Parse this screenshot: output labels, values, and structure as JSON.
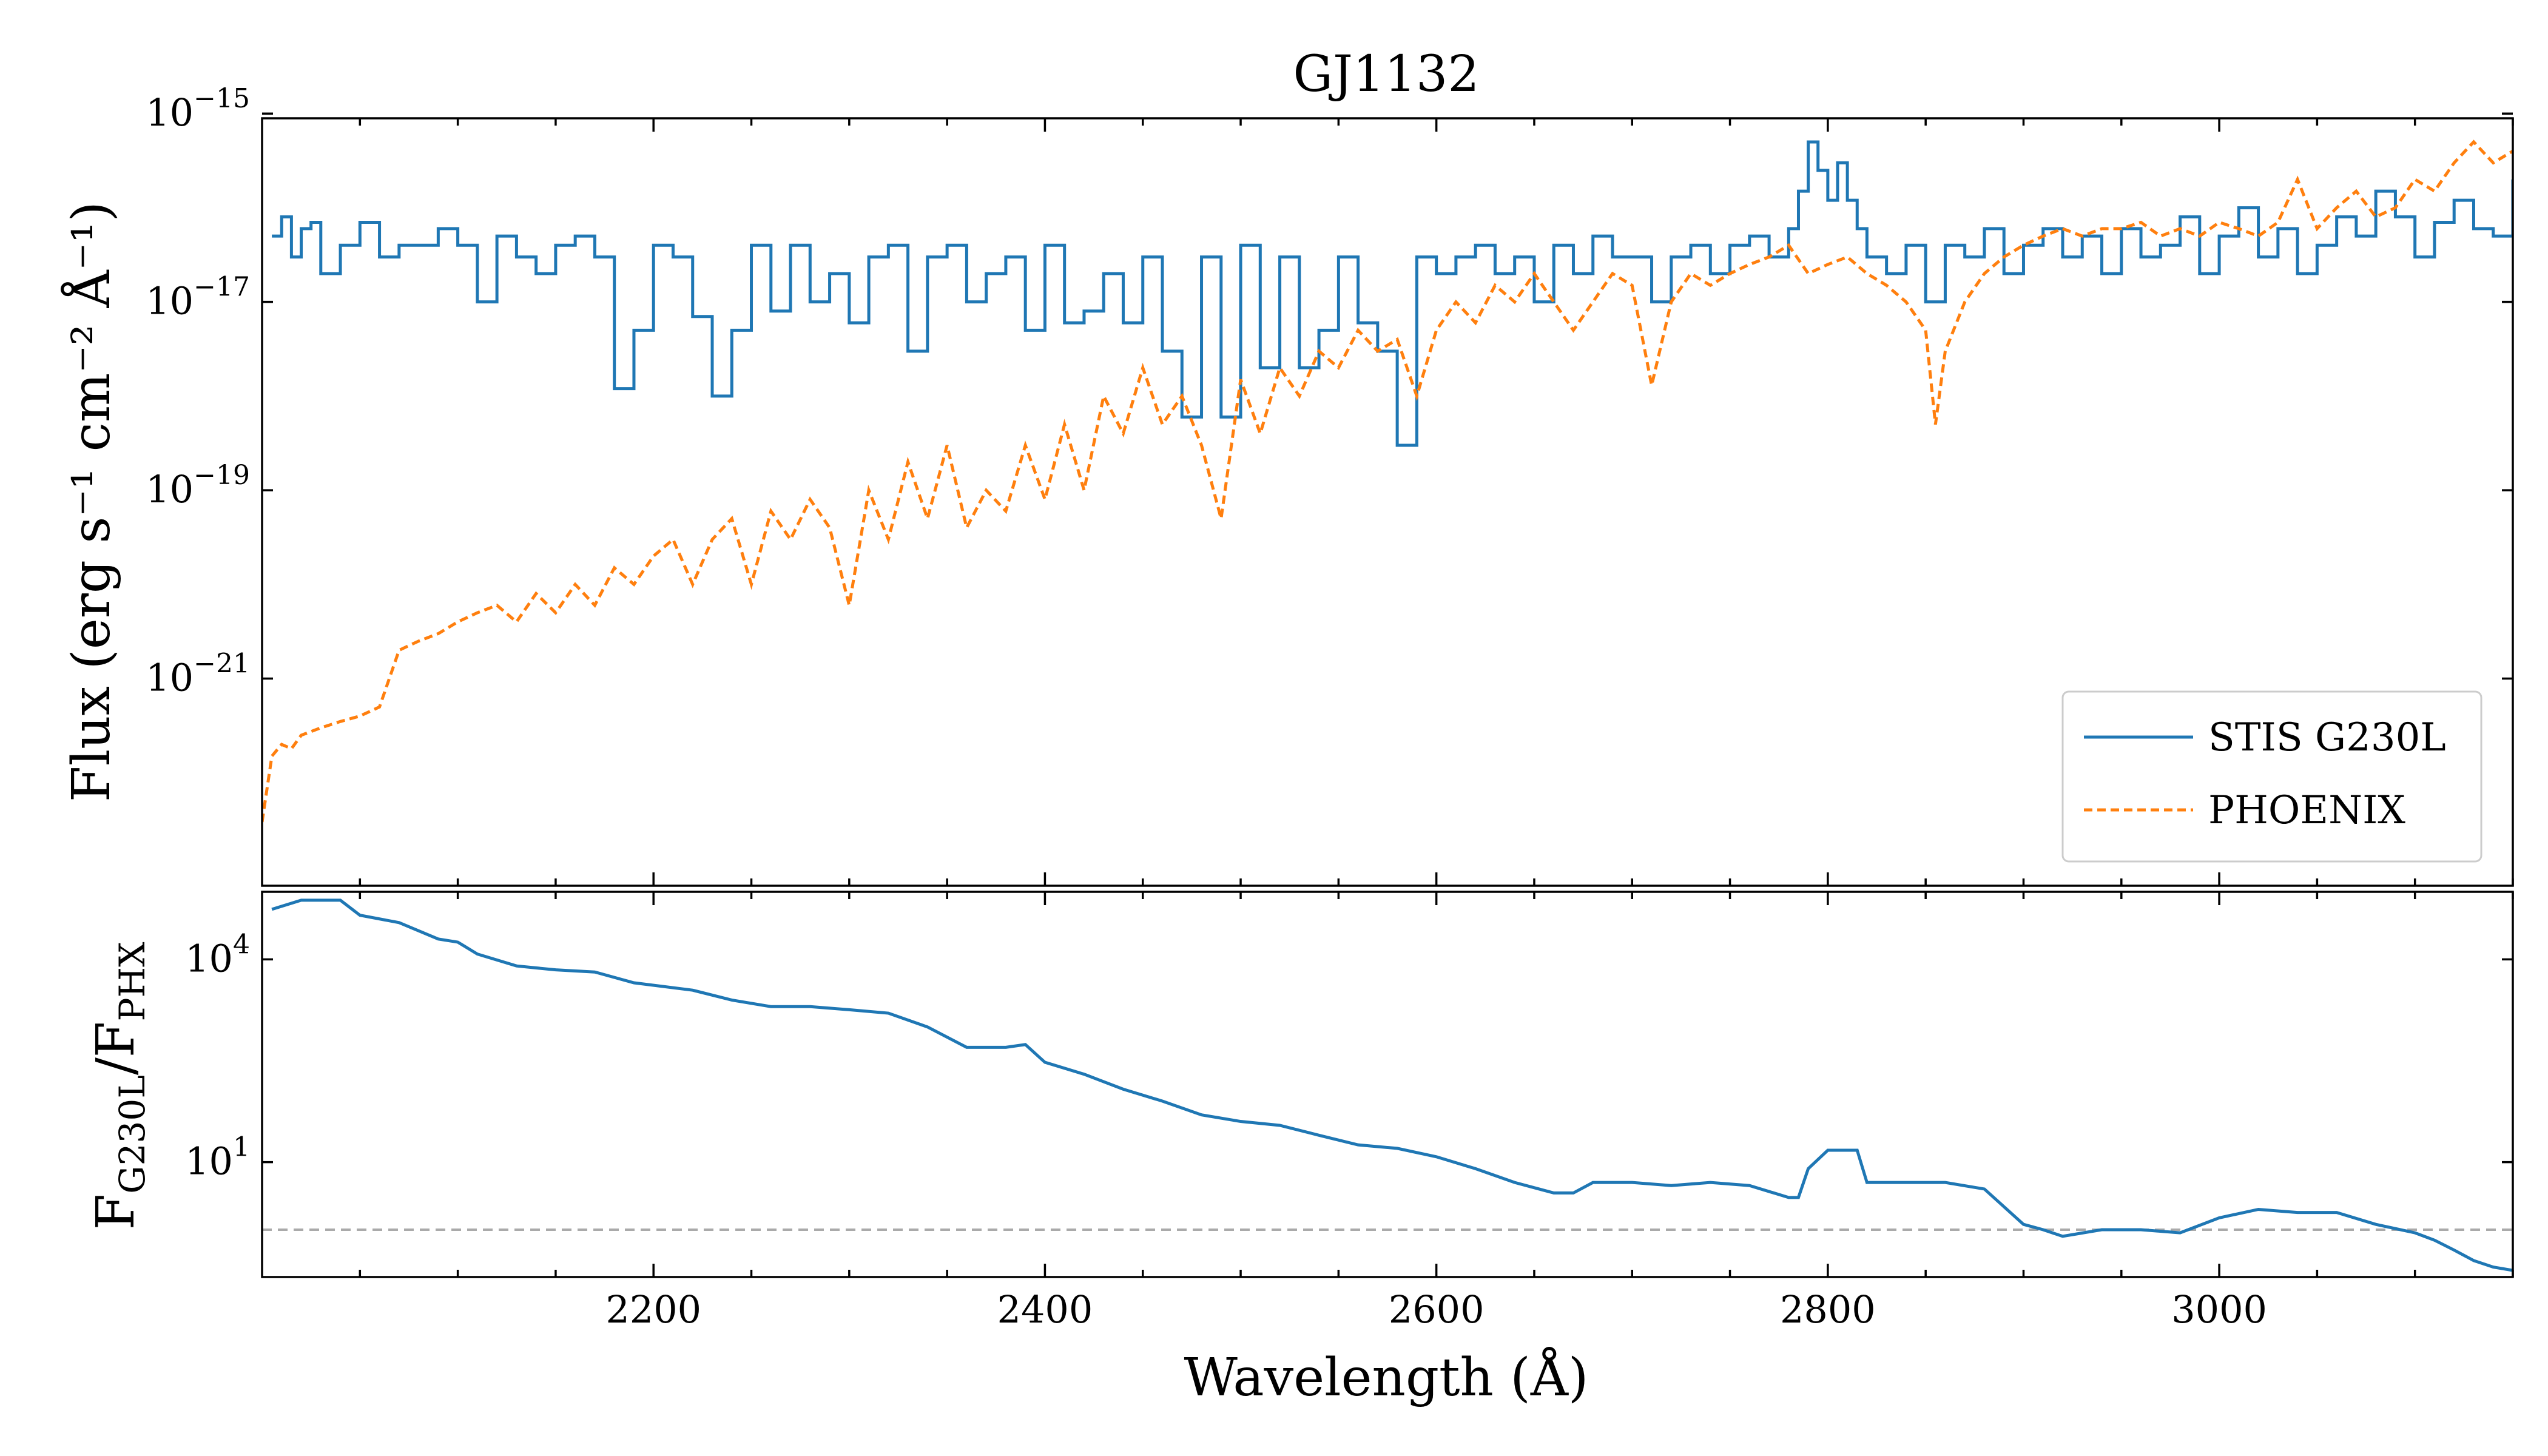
{
  "chart_data": [
    {
      "type": "line",
      "panel": "top",
      "title": "GJ1132",
      "xlabel": "",
      "ylabel": "Flux (erg s⁻¹ cm⁻² Å⁻¹)",
      "xlim": [
        2000,
        3150
      ],
      "ylim_log10": [
        -23.2,
        -15.05
      ],
      "yscale": "log",
      "y_ticks": [
        {
          "exp": -15,
          "label": "10",
          "sup": "−15"
        },
        {
          "exp": -17,
          "label": "10",
          "sup": "−17"
        },
        {
          "exp": -19,
          "label": "10",
          "sup": "−19"
        },
        {
          "exp": -21,
          "label": "10",
          "sup": "−21"
        }
      ],
      "legend": {
        "placement": "lower-right",
        "entries": [
          "STIS G230L",
          "PHOENIX"
        ]
      },
      "series": [
        {
          "name": "STIS G230L",
          "style": "step",
          "color": "#1f77b4",
          "x": [
            2005,
            2010,
            2015,
            2020,
            2025,
            2030,
            2040,
            2050,
            2060,
            2070,
            2080,
            2090,
            2100,
            2110,
            2120,
            2130,
            2140,
            2150,
            2160,
            2170,
            2180,
            2190,
            2200,
            2210,
            2220,
            2230,
            2240,
            2250,
            2260,
            2270,
            2280,
            2290,
            2300,
            2310,
            2320,
            2330,
            2340,
            2350,
            2360,
            2370,
            2380,
            2390,
            2400,
            2410,
            2420,
            2430,
            2440,
            2450,
            2460,
            2470,
            2480,
            2490,
            2500,
            2510,
            2520,
            2530,
            2540,
            2550,
            2560,
            2570,
            2580,
            2590,
            2600,
            2610,
            2620,
            2630,
            2640,
            2650,
            2660,
            2670,
            2680,
            2690,
            2700,
            2710,
            2720,
            2730,
            2740,
            2750,
            2760,
            2770,
            2780,
            2785,
            2790,
            2795,
            2800,
            2805,
            2810,
            2815,
            2820,
            2830,
            2840,
            2850,
            2860,
            2870,
            2880,
            2890,
            2900,
            2910,
            2920,
            2930,
            2940,
            2950,
            2960,
            2970,
            2980,
            2990,
            3000,
            3010,
            3020,
            3030,
            3040,
            3050,
            3060,
            3070,
            3080,
            3090,
            3100,
            3110,
            3120,
            3130,
            3140,
            3150
          ],
          "y": [
            5e-17,
            8e-17,
            3e-17,
            6e-17,
            7e-17,
            2e-17,
            4e-17,
            7e-17,
            3e-17,
            4e-17,
            4e-17,
            6e-17,
            4e-17,
            1e-17,
            5e-17,
            3e-17,
            2e-17,
            4e-17,
            5e-17,
            3e-17,
            1.2e-18,
            5e-18,
            4e-17,
            3e-17,
            7e-18,
            1e-18,
            5e-18,
            4e-17,
            8e-18,
            4e-17,
            1e-17,
            2e-17,
            6e-18,
            3e-17,
            4e-17,
            3e-18,
            3e-17,
            4e-17,
            1e-17,
            2e-17,
            3e-17,
            5e-18,
            4e-17,
            6e-18,
            8e-18,
            2e-17,
            6e-18,
            3e-17,
            3e-18,
            6e-19,
            3e-17,
            6e-19,
            4e-17,
            2e-18,
            3e-17,
            2e-18,
            5e-18,
            3e-17,
            6e-18,
            3e-18,
            3e-19,
            3e-17,
            2e-17,
            3e-17,
            4e-17,
            2e-17,
            3e-17,
            1e-17,
            4e-17,
            2e-17,
            5e-17,
            3e-17,
            3e-17,
            1e-17,
            3e-17,
            4e-17,
            2e-17,
            4e-17,
            5e-17,
            3e-17,
            6e-17,
            1.5e-16,
            5e-16,
            2.5e-16,
            1.2e-16,
            3e-16,
            1.2e-16,
            6e-17,
            3e-17,
            2e-17,
            4e-17,
            1e-17,
            4e-17,
            3e-17,
            6e-17,
            2e-17,
            4e-17,
            6e-17,
            3e-17,
            5e-17,
            2e-17,
            6e-17,
            3e-17,
            4e-17,
            8e-17,
            2e-17,
            5e-17,
            1e-16,
            3e-17,
            6e-17,
            2e-17,
            4e-17,
            8e-17,
            5e-17,
            1.5e-16,
            8e-17,
            3e-17,
            7e-17,
            1.2e-16,
            6e-17,
            5e-17,
            2e-16
          ]
        },
        {
          "name": "PHOENIX",
          "style": "dashed",
          "color": "#ff7f0e",
          "x": [
            2000,
            2005,
            2010,
            2015,
            2020,
            2030,
            2040,
            2050,
            2060,
            2065,
            2070,
            2080,
            2090,
            2100,
            2110,
            2120,
            2130,
            2140,
            2150,
            2160,
            2170,
            2180,
            2190,
            2200,
            2210,
            2220,
            2230,
            2240,
            2250,
            2260,
            2270,
            2280,
            2290,
            2300,
            2310,
            2320,
            2330,
            2340,
            2350,
            2360,
            2370,
            2380,
            2390,
            2400,
            2410,
            2420,
            2430,
            2440,
            2450,
            2460,
            2470,
            2480,
            2490,
            2500,
            2510,
            2520,
            2530,
            2540,
            2550,
            2560,
            2570,
            2580,
            2590,
            2600,
            2610,
            2620,
            2630,
            2640,
            2650,
            2660,
            2670,
            2680,
            2690,
            2700,
            2710,
            2720,
            2730,
            2740,
            2750,
            2760,
            2770,
            2780,
            2790,
            2800,
            2810,
            2820,
            2830,
            2840,
            2850,
            2855,
            2860,
            2870,
            2880,
            2890,
            2900,
            2910,
            2920,
            2930,
            2940,
            2950,
            2960,
            2970,
            2980,
            2990,
            3000,
            3010,
            3020,
            3030,
            3040,
            3050,
            3060,
            3070,
            3080,
            3090,
            3100,
            3110,
            3120,
            3130,
            3140,
            3150
          ],
          "y": [
            3e-23,
            1.5e-22,
            2e-22,
            1.8e-22,
            2.5e-22,
            3e-22,
            3.5e-22,
            4e-22,
            5e-22,
            1e-21,
            2e-21,
            2.5e-21,
            3e-21,
            4e-21,
            5e-21,
            6e-21,
            4e-21,
            8e-21,
            5e-21,
            1e-20,
            6e-21,
            1.5e-20,
            1e-20,
            2e-20,
            3e-20,
            1e-20,
            3e-20,
            5e-20,
            1e-20,
            6e-20,
            3e-20,
            8e-20,
            4e-20,
            6e-21,
            1e-19,
            3e-20,
            2e-19,
            5e-20,
            3e-19,
            4e-20,
            1e-19,
            6e-20,
            3e-19,
            8e-20,
            5e-19,
            1e-19,
            1e-18,
            4e-19,
            2e-18,
            5e-19,
            1e-18,
            3e-19,
            5e-20,
            1.5e-18,
            4e-19,
            2e-18,
            1e-18,
            3e-18,
            2e-18,
            5e-18,
            3e-18,
            4e-18,
            1e-18,
            5e-18,
            1e-17,
            6e-18,
            1.5e-17,
            1e-17,
            2e-17,
            1e-17,
            5e-18,
            1e-17,
            2e-17,
            1.5e-17,
            1.3e-18,
            1e-17,
            2e-17,
            1.5e-17,
            2e-17,
            2.5e-17,
            3e-17,
            4e-17,
            2e-17,
            2.5e-17,
            3e-17,
            2e-17,
            1.5e-17,
            1e-17,
            5e-18,
            5e-19,
            3e-18,
            1e-17,
            2e-17,
            3e-17,
            4e-17,
            5e-17,
            6e-17,
            5e-17,
            6e-17,
            6e-17,
            7e-17,
            5e-17,
            6e-17,
            5e-17,
            7e-17,
            6e-17,
            5e-17,
            7e-17,
            2e-16,
            6e-17,
            1e-16,
            1.5e-16,
            8e-17,
            1e-16,
            2e-16,
            1.5e-16,
            3e-16,
            5e-16,
            3e-16,
            4e-16
          ]
        }
      ]
    },
    {
      "type": "line",
      "panel": "bottom",
      "xlabel": "Wavelength (Å)",
      "ylabel": "F",
      "ylabel_sub1": "G230L",
      "ylabel_mid": "/F",
      "ylabel_sub2": "PHX",
      "xlim": [
        2000,
        3150
      ],
      "ylim_log10": [
        -0.7,
        5.0
      ],
      "yscale": "log",
      "x_ticks": [
        2200,
        2400,
        2600,
        2800,
        3000
      ],
      "y_ticks": [
        {
          "exp": 4,
          "label": "10",
          "sup": "4"
        },
        {
          "exp": 1,
          "label": "10",
          "sup": "1"
        }
      ],
      "reference_line": {
        "y": 1,
        "style": "dashed",
        "color": "#aaaaaa"
      },
      "series": [
        {
          "name": "",
          "color": "#1f77b4",
          "x": [
            2005,
            2020,
            2040,
            2050,
            2070,
            2090,
            2100,
            2110,
            2130,
            2150,
            2170,
            2190,
            2220,
            2240,
            2260,
            2280,
            2300,
            2320,
            2340,
            2360,
            2380,
            2390,
            2400,
            2420,
            2440,
            2460,
            2480,
            2500,
            2520,
            2540,
            2560,
            2580,
            2600,
            2620,
            2640,
            2660,
            2670,
            2680,
            2700,
            2720,
            2740,
            2760,
            2780,
            2785,
            2790,
            2800,
            2810,
            2815,
            2820,
            2840,
            2860,
            2880,
            2900,
            2910,
            2920,
            2940,
            2960,
            2980,
            3000,
            3020,
            3040,
            3060,
            3080,
            3100,
            3110,
            3120,
            3130,
            3140,
            3150
          ],
          "y": [
            55000,
            75000,
            75000,
            45000,
            35000,
            20000,
            18000,
            12000,
            8000,
            7000,
            6500,
            4500,
            3500,
            2500,
            2000,
            2000,
            1800,
            1600,
            1000,
            500,
            500,
            550,
            300,
            200,
            120,
            80,
            50,
            40,
            35,
            25,
            18,
            16,
            12,
            8,
            5,
            3.5,
            3.5,
            5,
            5,
            4.5,
            5,
            4.5,
            3,
            3,
            8,
            15,
            15,
            15,
            5,
            5,
            5,
            4,
            1.2,
            1.0,
            0.8,
            1.0,
            1.0,
            0.9,
            1.5,
            2.0,
            1.8,
            1.8,
            1.2,
            0.9,
            0.7,
            0.5,
            0.35,
            0.28,
            0.25
          ]
        }
      ]
    }
  ]
}
